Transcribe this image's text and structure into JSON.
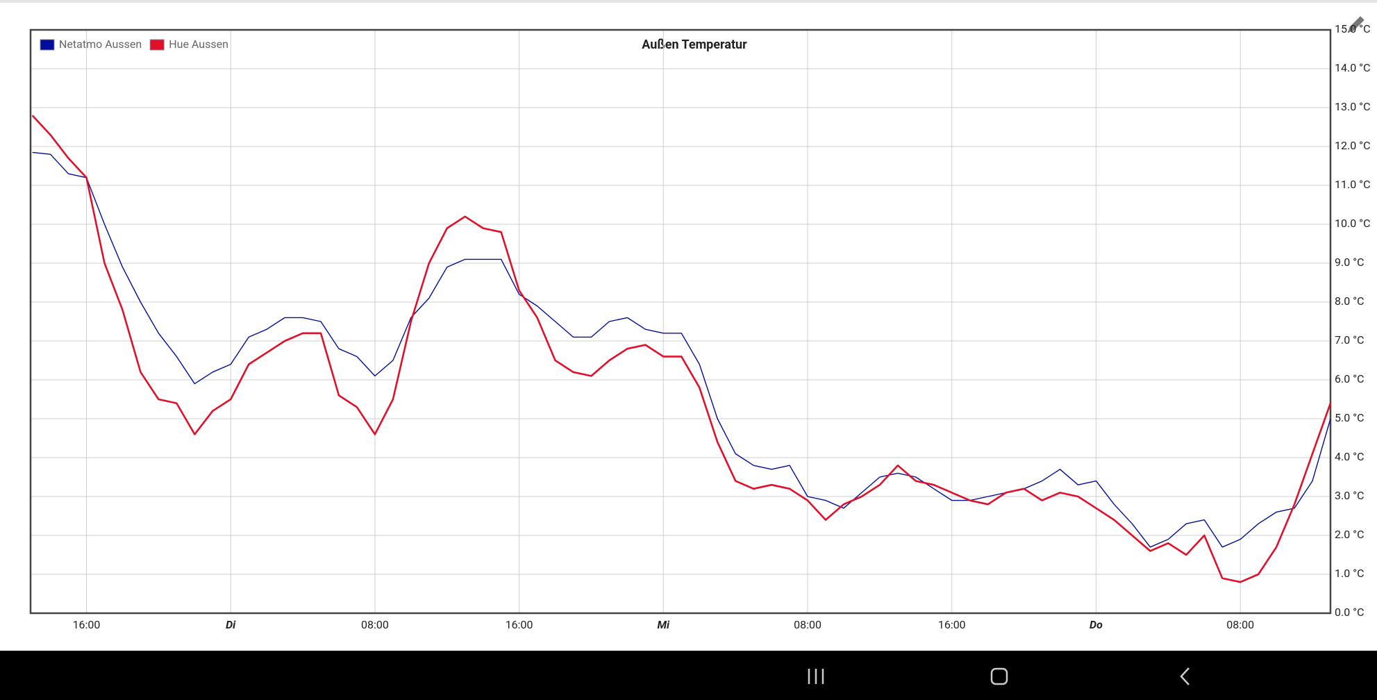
{
  "chart_data": {
    "type": "line",
    "title": "Außen Temperatur",
    "x": [
      13,
      14,
      15,
      16,
      17,
      18,
      19,
      20,
      21,
      22,
      23,
      24,
      25,
      26,
      27,
      28,
      29,
      30,
      31,
      32,
      33,
      34,
      35,
      36,
      37,
      38,
      39,
      40,
      41,
      42,
      43,
      44,
      45,
      46,
      47,
      48,
      49,
      50,
      51,
      52,
      53,
      54,
      55,
      56,
      57,
      58,
      59,
      60,
      61,
      62,
      63,
      64,
      65,
      66,
      67,
      68,
      69,
      70,
      71,
      72,
      73,
      74,
      75,
      76,
      77,
      78,
      79,
      80,
      81,
      82,
      83,
      84,
      85
    ],
    "series": [
      {
        "name": "Netatmo Aussen",
        "color": "#000c9a",
        "values": [
          11.85,
          11.8,
          11.3,
          11.2,
          10.0,
          8.9,
          8.0,
          7.2,
          6.6,
          5.9,
          6.2,
          6.4,
          7.1,
          7.3,
          7.6,
          7.6,
          7.5,
          6.8,
          6.6,
          6.1,
          6.5,
          7.6,
          8.1,
          8.9,
          9.1,
          9.1,
          9.1,
          8.2,
          7.9,
          7.5,
          7.1,
          7.1,
          7.5,
          7.6,
          7.3,
          7.2,
          7.2,
          6.4,
          5.0,
          4.1,
          3.8,
          3.7,
          3.8,
          3.0,
          2.9,
          2.7,
          3.1,
          3.5,
          3.6,
          3.5,
          3.2,
          2.9,
          2.9,
          3.0,
          3.1,
          3.2,
          3.4,
          3.7,
          3.3,
          3.4,
          2.8,
          2.3,
          1.7,
          1.9,
          2.3,
          2.4,
          1.7,
          1.9,
          2.3,
          2.6,
          2.7,
          3.4,
          5.0
        ]
      },
      {
        "name": "Hue Aussen",
        "color": "#e0102a",
        "values": [
          12.8,
          12.3,
          11.7,
          11.2,
          9.0,
          7.8,
          6.2,
          5.5,
          5.4,
          4.6,
          5.2,
          5.5,
          6.4,
          6.7,
          7.0,
          7.2,
          7.2,
          5.6,
          5.3,
          4.6,
          5.5,
          7.5,
          9.0,
          9.9,
          10.2,
          9.9,
          9.8,
          8.3,
          7.6,
          6.5,
          6.2,
          6.1,
          6.5,
          6.8,
          6.9,
          6.6,
          6.6,
          5.8,
          4.4,
          3.4,
          3.2,
          3.3,
          3.2,
          2.9,
          2.4,
          2.8,
          3.0,
          3.3,
          3.8,
          3.4,
          3.3,
          3.1,
          2.9,
          2.8,
          3.1,
          3.2,
          2.9,
          3.1,
          3.0,
          2.7,
          2.4,
          2.0,
          1.6,
          1.8,
          1.5,
          2.0,
          0.9,
          0.8,
          1.0,
          1.7,
          2.8,
          4.1,
          5.4
        ]
      }
    ],
    "xlim": [
      12.9,
      85
    ],
    "xticks": [
      {
        "value": 16,
        "label": "16:00"
      },
      {
        "value": 24,
        "label": "Di"
      },
      {
        "value": 32,
        "label": "08:00"
      },
      {
        "value": 40,
        "label": "16:00"
      },
      {
        "value": 48,
        "label": "Mi"
      },
      {
        "value": 56,
        "label": "08:00"
      },
      {
        "value": 64,
        "label": "16:00"
      },
      {
        "value": 72,
        "label": "Do"
      },
      {
        "value": 80,
        "label": "08:00"
      }
    ],
    "ylim": [
      0,
      15
    ],
    "yticks": [
      {
        "value": 0,
        "label": "0.0 °C"
      },
      {
        "value": 1,
        "label": "1.0 °C"
      },
      {
        "value": 2,
        "label": "2.0 °C"
      },
      {
        "value": 3,
        "label": "3.0 °C"
      },
      {
        "value": 4,
        "label": "4.0 °C"
      },
      {
        "value": 5,
        "label": "5.0 °C"
      },
      {
        "value": 6,
        "label": "6.0 °C"
      },
      {
        "value": 7,
        "label": "7.0 °C"
      },
      {
        "value": 8,
        "label": "8.0 °C"
      },
      {
        "value": 9,
        "label": "9.0 °C"
      },
      {
        "value": 10,
        "label": "10.0 °C"
      },
      {
        "value": 11,
        "label": "11.0 °C"
      },
      {
        "value": 12,
        "label": "12.0 °C"
      },
      {
        "value": 13,
        "label": "13.0 °C"
      },
      {
        "value": 14,
        "label": "14.0 °C"
      },
      {
        "value": 15,
        "label": "15.0 °C"
      }
    ],
    "grid": true,
    "legend": "top-left"
  }
}
